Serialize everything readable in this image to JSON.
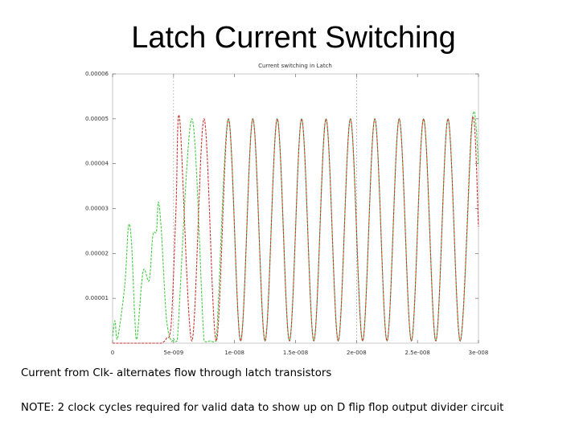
{
  "slide": {
    "title": "Latch Current Switching",
    "caption_1": "Current from Clk- alternates flow through latch transistors",
    "caption_2": "NOTE: 2 clock cycles required for valid data to show up on D flip flop output divider circuit"
  },
  "chart_data": {
    "type": "line",
    "title": "Current switching in Latch",
    "xlabel": "",
    "ylabel": "",
    "xlim": [
      0,
      3e-08
    ],
    "ylim": [
      0,
      6e-05
    ],
    "x_ticks": [
      0,
      5e-09,
      1e-08,
      1.5e-08,
      2e-08,
      2.5e-08,
      3e-08
    ],
    "x_tick_labels": [
      "0",
      "5e-009",
      "1e-008",
      "1.5e-008",
      "2e-008",
      "2.5e-008",
      "3e-008"
    ],
    "y_ticks": [
      1e-05,
      2e-05,
      3e-05,
      4e-05,
      5e-05,
      6e-05
    ],
    "y_tick_labels": [
      "0.00001",
      "0.00002",
      "0.00003",
      "0.00004",
      "0.00005",
      "0.00006"
    ],
    "grid": "x-dashed-at-5e-9-and-2e-8",
    "legend": "none",
    "series": [
      {
        "color": "#44cc44",
        "x": [
          0,
          2e-10,
          4e-10,
          1e-09,
          1.3e-09,
          1.55e-09,
          1.8e-09,
          2e-09,
          2.5e-09,
          3e-09,
          3.3e-09,
          3.6e-09,
          3.75e-09,
          4e-09,
          4.4e-09,
          4.8e-09,
          5e-09,
          5.3e-09,
          6.5e-09,
          7.5e-09,
          8e-09,
          8.5e-09,
          9.5e-09,
          1.05e-08,
          1.15e-08,
          1.25e-08,
          1.35e-08,
          1.45e-08,
          1.55e-08,
          1.65e-08,
          1.75e-08,
          1.85e-08,
          1.95e-08,
          2.05e-08,
          2.15e-08,
          2.25e-08,
          2.35e-08,
          2.45e-08,
          2.55e-08,
          2.65e-08,
          2.75e-08,
          2.85e-08,
          2.95e-08,
          3e-08
        ],
        "y": [
          1.5e-06,
          5e-06,
          1e-06,
          1.3e-05,
          2.6e-05,
          2.25e-05,
          7e-06,
          1e-06,
          1.6e-05,
          1.4e-05,
          2.4e-05,
          2.5e-05,
          3.15e-05,
          2.5e-05,
          6e-06,
          5e-07,
          1e-06,
          5e-07,
          5e-05,
          5e-07,
          5e-07,
          5e-07,
          5e-05,
          5e-07,
          5e-05,
          5e-07,
          5e-05,
          5e-07,
          5e-05,
          5e-07,
          5e-05,
          5e-07,
          5e-05,
          5e-07,
          5e-05,
          5e-07,
          5e-05,
          5e-07,
          5e-05,
          5e-07,
          5e-05,
          5e-07,
          5e-05,
          4e-05
        ]
      },
      {
        "color": "#cc3333",
        "x": [
          0,
          1.2e-09,
          1.8e-09,
          2.4e-09,
          3e-09,
          3.6e-09,
          4e-09,
          4.4e-09,
          4.8e-09,
          5.2e-09,
          5.5e-09,
          6.5e-09,
          7.5e-09,
          8.5e-09,
          9.5e-09,
          1.05e-08,
          1.15e-08,
          1.25e-08,
          1.35e-08,
          1.45e-08,
          1.55e-08,
          1.65e-08,
          1.75e-08,
          1.85e-08,
          1.95e-08,
          2.05e-08,
          2.15e-08,
          2.25e-08,
          2.35e-08,
          2.45e-08,
          2.55e-08,
          2.65e-08,
          2.75e-08,
          2.85e-08,
          2.95e-08,
          3e-08
        ],
        "y": [
          0,
          0,
          0,
          0,
          0,
          0,
          0,
          1e-06,
          4e-06,
          3e-05,
          5e-05,
          5e-07,
          5e-05,
          5e-07,
          5e-05,
          5e-07,
          5e-05,
          5e-07,
          5e-05,
          5e-07,
          5e-05,
          5e-07,
          5e-05,
          5e-07,
          5e-05,
          5e-07,
          5e-05,
          5e-07,
          5e-05,
          5e-07,
          5e-05,
          5e-07,
          5e-05,
          5e-07,
          5e-05,
          2.6e-05
        ]
      }
    ]
  }
}
